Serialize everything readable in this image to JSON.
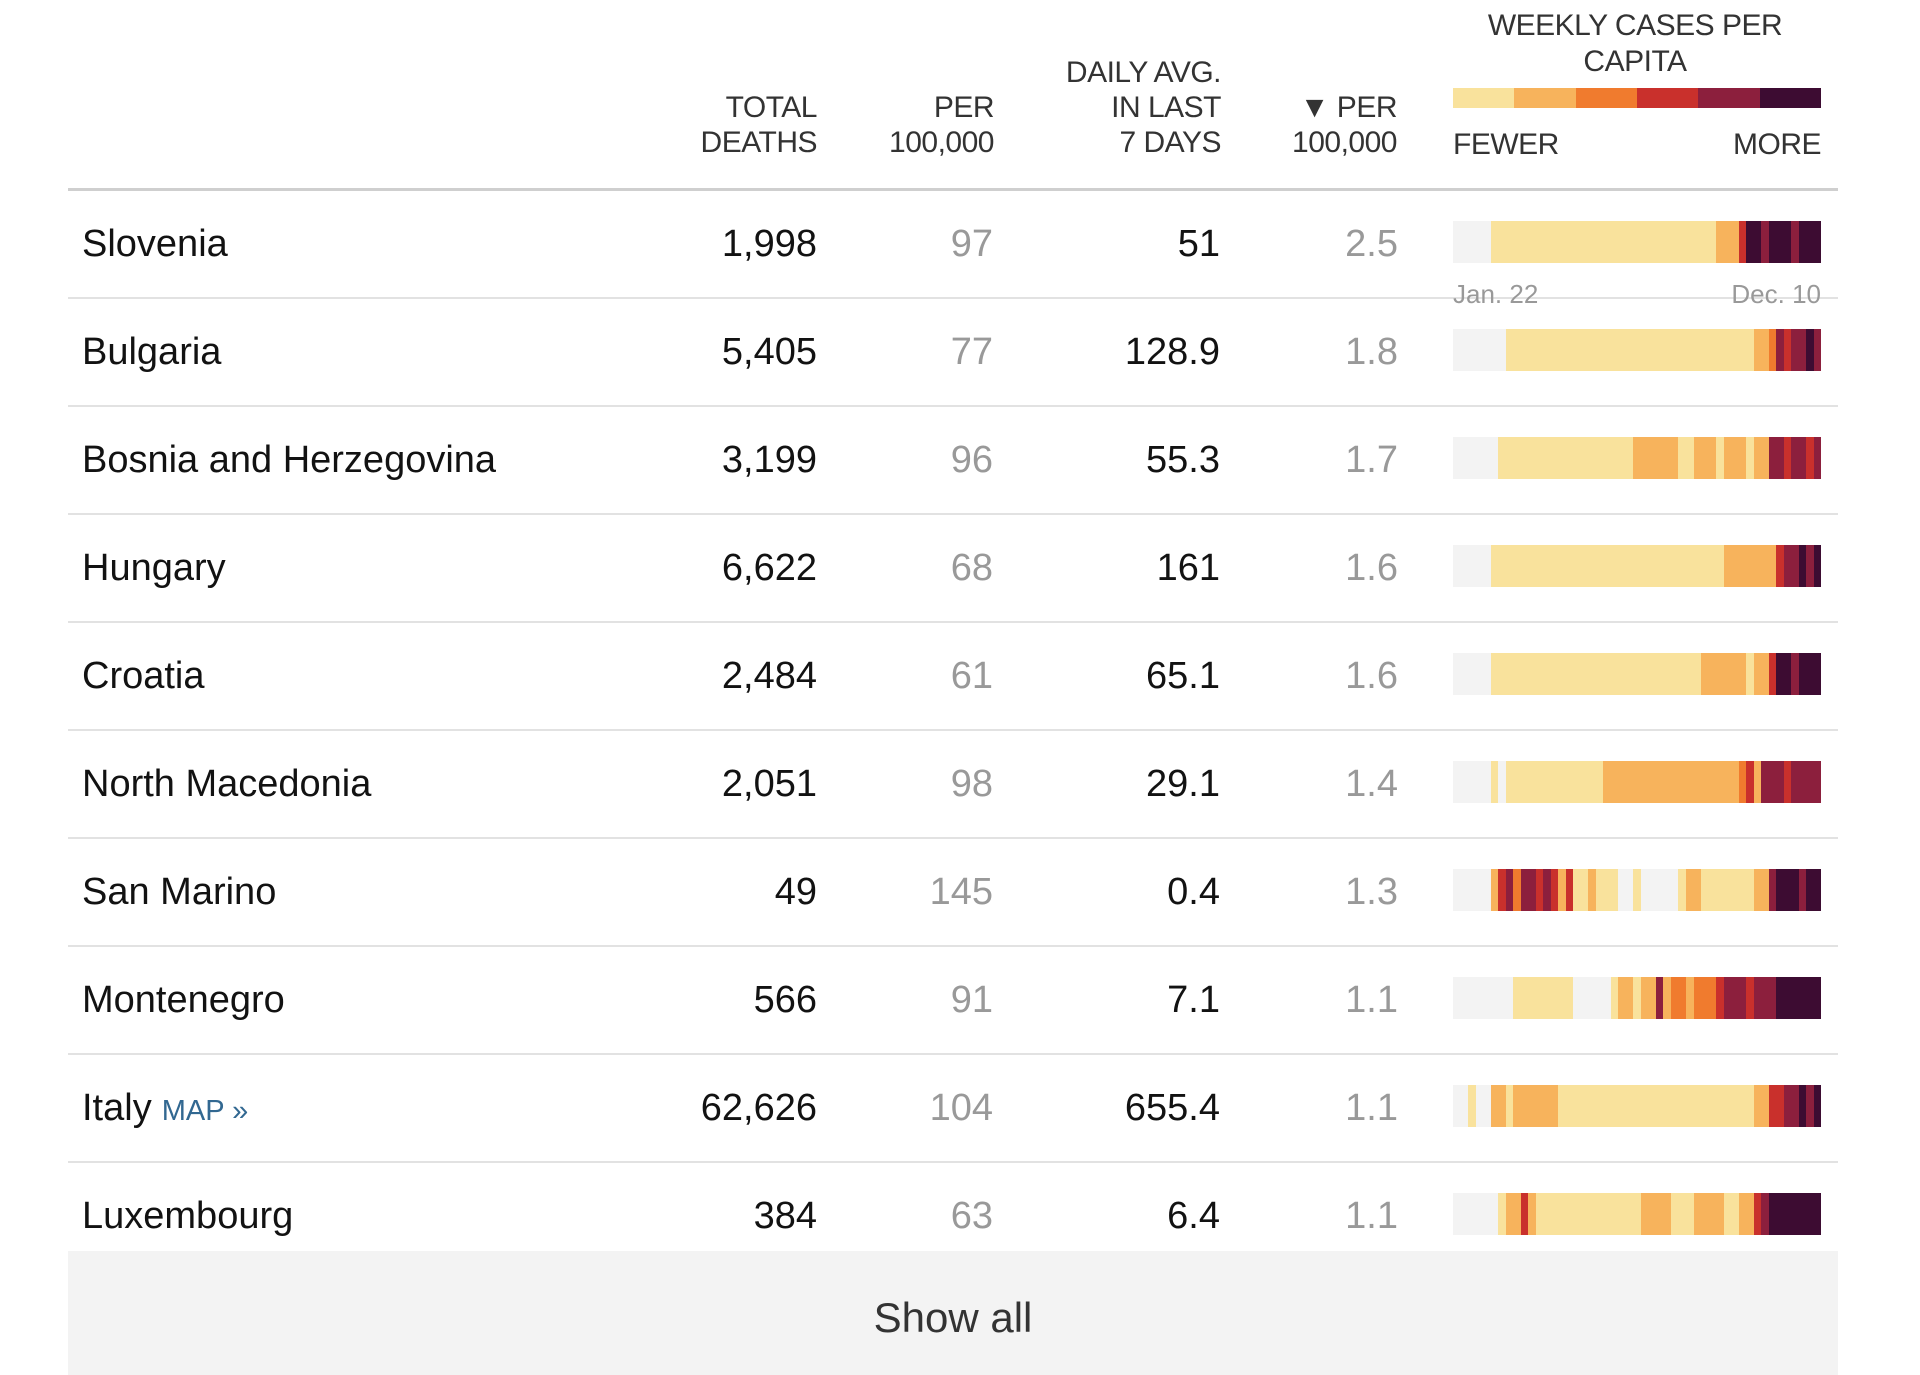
{
  "header": {
    "total_deaths": "TOTAL\nDEATHS",
    "per_100k": "PER\n100,000",
    "daily_avg": "DAILY AVG.\nIN LAST\n7 DAYS",
    "per_100k_sorted": "▼ PER\n100,000",
    "weekly_title": "WEEKLY CASES PER\nCAPITA",
    "legend_fewer": "FEWER",
    "legend_more": "MORE",
    "date_start": "Jan. 22",
    "date_end": "Dec. 10"
  },
  "colors": {
    "scale": [
      "#f3f3f3",
      "#f9e29c",
      "#f7b35c",
      "#f07b2e",
      "#c9302c",
      "#8c1f3d",
      "#3d0c32"
    ]
  },
  "legend_levels": [
    1,
    2,
    3,
    4,
    5,
    6
  ],
  "rows": [
    {
      "country": "Slovenia",
      "link": "",
      "total_deaths": "1,998",
      "per_100k": "97",
      "daily_avg": "51",
      "per_100k_avg": "2.5",
      "weekly": [
        0,
        0,
        0,
        0,
        0,
        1,
        1,
        1,
        1,
        1,
        1,
        1,
        1,
        1,
        1,
        1,
        1,
        1,
        1,
        1,
        1,
        1,
        1,
        1,
        1,
        1,
        1,
        1,
        1,
        1,
        1,
        1,
        1,
        1,
        1,
        2,
        2,
        2,
        4,
        6,
        6,
        5,
        6,
        6,
        6,
        5,
        6,
        6,
        6
      ]
    },
    {
      "country": "Bulgaria",
      "link": "",
      "total_deaths": "5,405",
      "per_100k": "77",
      "daily_avg": "128.9",
      "per_100k_avg": "1.8",
      "weekly": [
        0,
        0,
        0,
        0,
        0,
        0,
        0,
        1,
        1,
        1,
        1,
        1,
        1,
        1,
        1,
        1,
        1,
        1,
        1,
        1,
        1,
        1,
        1,
        1,
        1,
        1,
        1,
        1,
        1,
        1,
        1,
        1,
        1,
        1,
        1,
        1,
        1,
        1,
        1,
        1,
        2,
        2,
        3,
        5,
        4,
        5,
        5,
        6,
        5
      ]
    },
    {
      "country": "Bosnia and Herzegovina",
      "link": "",
      "total_deaths": "3,199",
      "per_100k": "96",
      "daily_avg": "55.3",
      "per_100k_avg": "1.7",
      "weekly": [
        0,
        0,
        0,
        0,
        0,
        0,
        1,
        1,
        1,
        1,
        1,
        1,
        1,
        1,
        1,
        1,
        1,
        1,
        1,
        1,
        1,
        1,
        1,
        1,
        2,
        2,
        2,
        2,
        2,
        2,
        1,
        1,
        2,
        2,
        2,
        1,
        2,
        2,
        2,
        1,
        2,
        2,
        5,
        5,
        4,
        5,
        5,
        4,
        5
      ]
    },
    {
      "country": "Hungary",
      "link": "",
      "total_deaths": "6,622",
      "per_100k": "68",
      "daily_avg": "161",
      "per_100k_avg": "1.6",
      "weekly": [
        0,
        0,
        0,
        0,
        0,
        1,
        1,
        1,
        1,
        1,
        1,
        1,
        1,
        1,
        1,
        1,
        1,
        1,
        1,
        1,
        1,
        1,
        1,
        1,
        1,
        1,
        1,
        1,
        1,
        1,
        1,
        1,
        1,
        1,
        1,
        1,
        2,
        2,
        2,
        2,
        2,
        2,
        2,
        4,
        5,
        5,
        6,
        5,
        6
      ]
    },
    {
      "country": "Croatia",
      "link": "",
      "total_deaths": "2,484",
      "per_100k": "61",
      "daily_avg": "65.1",
      "per_100k_avg": "1.6",
      "weekly": [
        0,
        0,
        0,
        0,
        0,
        1,
        1,
        1,
        1,
        1,
        1,
        1,
        1,
        1,
        1,
        1,
        1,
        1,
        1,
        1,
        1,
        1,
        1,
        1,
        1,
        1,
        1,
        1,
        1,
        1,
        1,
        1,
        1,
        2,
        2,
        2,
        2,
        2,
        2,
        1,
        2,
        2,
        4,
        6,
        6,
        5,
        6,
        6,
        6
      ]
    },
    {
      "country": "North Macedonia",
      "link": "",
      "total_deaths": "2,051",
      "per_100k": "98",
      "daily_avg": "29.1",
      "per_100k_avg": "1.4",
      "weekly": [
        0,
        0,
        0,
        0,
        0,
        1,
        0,
        1,
        1,
        1,
        1,
        1,
        1,
        1,
        1,
        1,
        1,
        1,
        1,
        1,
        2,
        2,
        2,
        2,
        2,
        2,
        2,
        2,
        2,
        2,
        2,
        2,
        2,
        2,
        2,
        2,
        2,
        2,
        3,
        4,
        2,
        5,
        5,
        5,
        4,
        5,
        5,
        5,
        5
      ]
    },
    {
      "country": "San Marino",
      "link": "",
      "total_deaths": "49",
      "per_100k": "145",
      "daily_avg": "0.4",
      "per_100k_avg": "1.3",
      "weekly": [
        0,
        0,
        0,
        0,
        0,
        2,
        4,
        5,
        3,
        5,
        5,
        4,
        5,
        4,
        2,
        4,
        1,
        1,
        2,
        1,
        1,
        1,
        0,
        0,
        1,
        0,
        0,
        0,
        0,
        0,
        1,
        2,
        2,
        1,
        1,
        1,
        1,
        1,
        1,
        1,
        2,
        2,
        5,
        6,
        6,
        6,
        5,
        6,
        6
      ]
    },
    {
      "country": "Montenegro",
      "link": "",
      "total_deaths": "566",
      "per_100k": "91",
      "daily_avg": "7.1",
      "per_100k_avg": "1.1",
      "weekly": [
        0,
        0,
        0,
        0,
        0,
        0,
        0,
        0,
        1,
        1,
        1,
        1,
        1,
        1,
        1,
        1,
        0,
        0,
        0,
        0,
        0,
        1,
        2,
        2,
        1,
        2,
        2,
        5,
        2,
        3,
        3,
        2,
        3,
        3,
        3,
        4,
        5,
        5,
        5,
        4,
        5,
        5,
        5,
        6,
        6,
        6,
        6,
        6,
        6
      ]
    },
    {
      "country": "Italy",
      "link": "MAP »",
      "total_deaths": "62,626",
      "per_100k": "104",
      "daily_avg": "655.4",
      "per_100k_avg": "1.1",
      "weekly": [
        0,
        0,
        1,
        0,
        0,
        2,
        2,
        1,
        2,
        2,
        2,
        2,
        2,
        2,
        1,
        1,
        1,
        1,
        1,
        1,
        1,
        1,
        1,
        1,
        1,
        1,
        1,
        1,
        1,
        1,
        1,
        1,
        1,
        1,
        1,
        1,
        1,
        1,
        1,
        1,
        2,
        2,
        4,
        4,
        5,
        5,
        6,
        5,
        6
      ]
    },
    {
      "country": "Luxembourg",
      "link": "",
      "total_deaths": "384",
      "per_100k": "63",
      "daily_avg": "6.4",
      "per_100k_avg": "1.1",
      "weekly": [
        0,
        0,
        0,
        0,
        0,
        0,
        1,
        2,
        2,
        4,
        2,
        1,
        1,
        1,
        1,
        1,
        1,
        1,
        1,
        1,
        1,
        1,
        1,
        1,
        1,
        2,
        2,
        2,
        2,
        1,
        1,
        1,
        2,
        2,
        2,
        2,
        1,
        1,
        2,
        2,
        4,
        5,
        6,
        6,
        6,
        6,
        6,
        6,
        6
      ]
    }
  ],
  "show_all_label": "Show all"
}
